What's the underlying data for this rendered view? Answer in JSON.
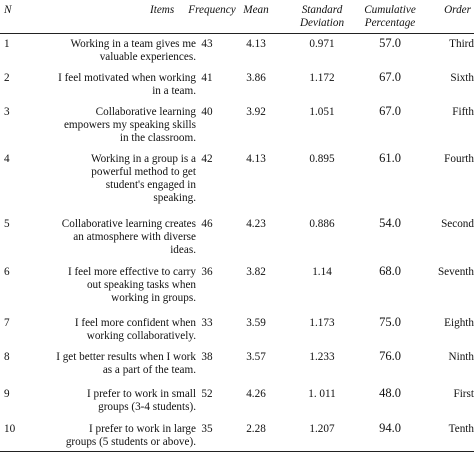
{
  "headers": {
    "n": "N",
    "items": "Items",
    "frequency": "Frequency",
    "mean": "Mean",
    "sd_1": "Standard",
    "sd_2": "Deviation",
    "cum_1": "Cumulative",
    "cum_2": "Percentage",
    "order": "Order"
  },
  "rows": [
    {
      "n": "1",
      "item": [
        "Working in a team gives me",
        "valuable experiences."
      ],
      "frequency": "43",
      "mean": "4.13",
      "sd": "0.971",
      "cumulative": "57.0",
      "order": "Third"
    },
    {
      "n": "2",
      "item": [
        "I feel motivated when working",
        "in a team."
      ],
      "frequency": "41",
      "mean": "3.86",
      "sd": "1.172",
      "cumulative": "67.0",
      "order": "Sixth"
    },
    {
      "n": "3",
      "item": [
        "Collaborative learning",
        "empowers my speaking skills",
        "in the classroom."
      ],
      "frequency": "40",
      "mean": "3.92",
      "sd": "1.051",
      "cumulative": "67.0",
      "order": "Fifth"
    },
    {
      "n": "4",
      "item": [
        "Working in a group is a",
        "powerful method to get",
        "student's engaged in",
        "speaking."
      ],
      "frequency": "42",
      "mean": "4.13",
      "sd": "0.895",
      "cumulative": "61.0",
      "order": "Fourth"
    },
    {
      "n": "5",
      "item": [
        "Collaborative learning creates",
        "an atmosphere with diverse",
        "ideas."
      ],
      "frequency": "46",
      "mean": "4.23",
      "sd": "0.886",
      "cumulative": "54.0",
      "order": "Second"
    },
    {
      "n": "6",
      "item": [
        "I feel more effective to carry",
        "out speaking tasks when",
        "working in groups."
      ],
      "frequency": "36",
      "mean": "3.82",
      "sd": "1.14",
      "cumulative": "68.0",
      "order": "Seventh"
    },
    {
      "n": "7",
      "item": [
        "I feel more confident when",
        "working collaboratively."
      ],
      "frequency": "33",
      "mean": "3.59",
      "sd": "1.173",
      "cumulative": "75.0",
      "order": "Eighth"
    },
    {
      "n": "8",
      "item": [
        "I get better results when I work",
        "as a part of the team."
      ],
      "frequency": "38",
      "mean": "3.57",
      "sd": "1.233",
      "cumulative": "76.0",
      "order": "Ninth"
    },
    {
      "n": "9",
      "item": [
        "I prefer to work in small",
        "groups (3-4 students)."
      ],
      "frequency": "52",
      "mean": "4.26",
      "sd": "1. 011",
      "cumulative": "48.0",
      "order": "First"
    },
    {
      "n": "10",
      "item": [
        "I prefer to work in large",
        "groups (5 students or above)."
      ],
      "frequency": "35",
      "mean": "2.28",
      "sd": "1.207",
      "cumulative": "94.0",
      "order": "Tenth"
    }
  ]
}
